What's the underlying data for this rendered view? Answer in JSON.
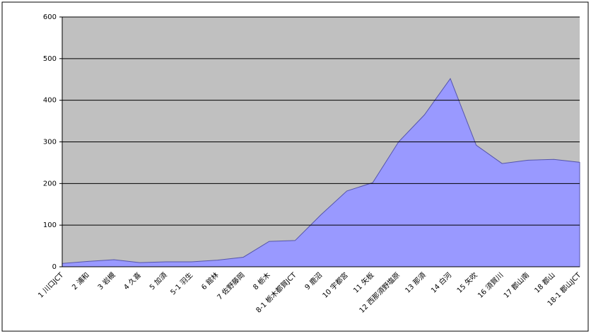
{
  "chart_data": {
    "type": "area",
    "categories": [
      "1 川口JCT",
      "2 浦和",
      "3 岩槻",
      "4 久喜",
      "5 加須",
      "5-1 羽生",
      "6 館林",
      "7 佐野藤岡",
      "8 栃木",
      "8-1 栃木都賀JCT",
      "9 鹿沼",
      "10 宇都宮",
      "11 矢板",
      "12 西那須野塩原",
      "13 那須",
      "14 白河",
      "15 矢吹",
      "16 須賀川",
      "17 郡山南",
      "18 郡山",
      "18-1 郡山JCT"
    ],
    "values": [
      8,
      13,
      17,
      10,
      12,
      12,
      16,
      23,
      61,
      63,
      125,
      182,
      202,
      300,
      365,
      452,
      292,
      248,
      256,
      258,
      251
    ],
    "color": "#9999ff",
    "ylim": [
      0,
      600
    ],
    "yticks": [
      0,
      100,
      200,
      300,
      400,
      500,
      600
    ],
    "grid": true
  }
}
